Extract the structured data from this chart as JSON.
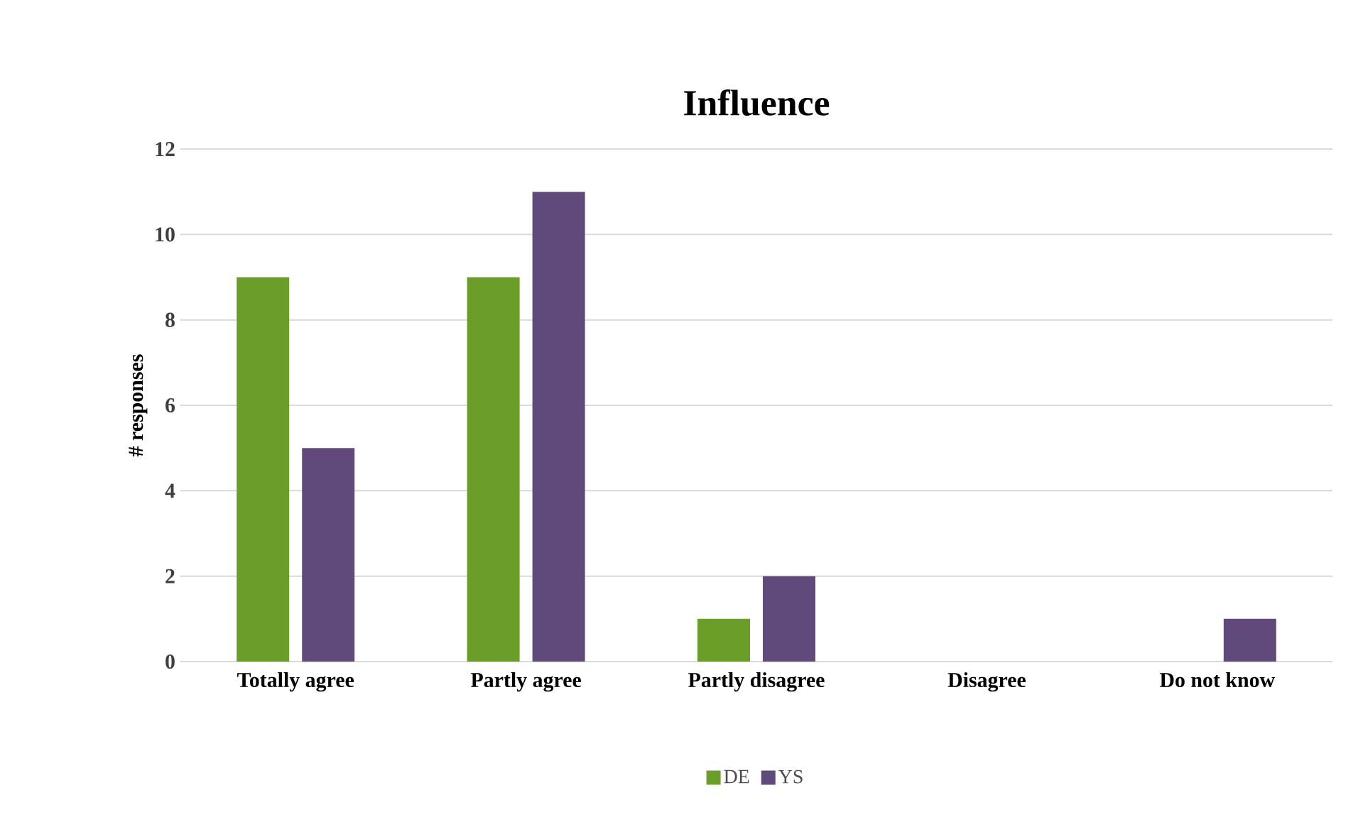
{
  "chart_data": {
    "type": "bar",
    "title": "Influence",
    "ylabel": "# responses",
    "categories": [
      "Totally agree",
      "Partly agree",
      "Partly disagree",
      "Disagree",
      "Do not know"
    ],
    "series": [
      {
        "name": "DE",
        "color": "#6b9e29",
        "values": [
          9,
          9,
          1,
          0,
          0
        ]
      },
      {
        "name": "YS",
        "color": "#604a7b",
        "values": [
          5,
          11,
          2,
          0,
          1
        ]
      }
    ],
    "ylim": [
      0,
      12
    ],
    "yticks": [
      0,
      2,
      4,
      6,
      8,
      10,
      12
    ],
    "grid": "y",
    "legend": "bottom"
  }
}
